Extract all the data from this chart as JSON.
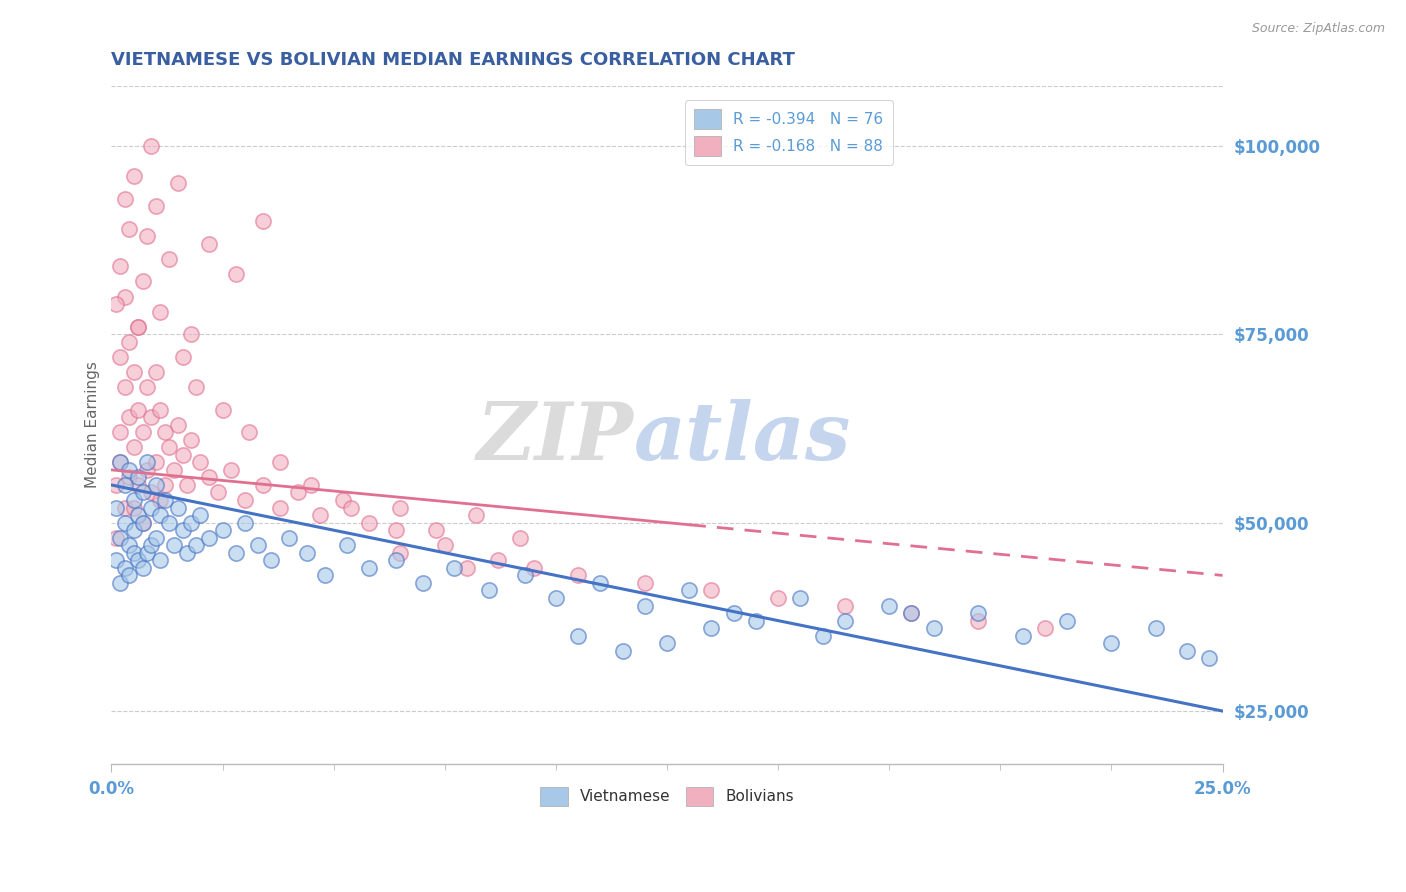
{
  "title": "VIETNAMESE VS BOLIVIAN MEDIAN EARNINGS CORRELATION CHART",
  "source": "Source: ZipAtlas.com",
  "ylabel": "Median Earnings",
  "xlim": [
    0.0,
    0.25
  ],
  "ylim": [
    18000,
    108000
  ],
  "yticks": [
    25000,
    50000,
    75000,
    100000
  ],
  "title_color": "#3a5fa0",
  "axis_color": "#5b9bd5",
  "legend_r1": "R = -0.394   N = 76",
  "legend_r2": "R = -0.168   N = 88",
  "legend_label1": "Vietnamese",
  "legend_label2": "Bolivians",
  "color_blue": "#a8c8e8",
  "color_pink": "#f0b0c0",
  "line_blue": "#4472c4",
  "line_pink": "#e07090",
  "watermark_zip": "ZIP",
  "watermark_atlas": "atlas",
  "background_color": "#ffffff",
  "viet_x": [
    0.001,
    0.001,
    0.002,
    0.002,
    0.002,
    0.003,
    0.003,
    0.003,
    0.004,
    0.004,
    0.004,
    0.005,
    0.005,
    0.005,
    0.006,
    0.006,
    0.006,
    0.007,
    0.007,
    0.007,
    0.008,
    0.008,
    0.009,
    0.009,
    0.01,
    0.01,
    0.011,
    0.011,
    0.012,
    0.013,
    0.014,
    0.015,
    0.016,
    0.017,
    0.018,
    0.019,
    0.02,
    0.022,
    0.025,
    0.028,
    0.03,
    0.033,
    0.036,
    0.04,
    0.044,
    0.048,
    0.053,
    0.058,
    0.064,
    0.07,
    0.077,
    0.085,
    0.093,
    0.1,
    0.11,
    0.12,
    0.13,
    0.14,
    0.155,
    0.165,
    0.175,
    0.185,
    0.195,
    0.205,
    0.215,
    0.225,
    0.235,
    0.242,
    0.247,
    0.18,
    0.16,
    0.145,
    0.135,
    0.125,
    0.115,
    0.105
  ],
  "viet_y": [
    52000,
    45000,
    58000,
    48000,
    42000,
    55000,
    50000,
    44000,
    57000,
    47000,
    43000,
    53000,
    49000,
    46000,
    56000,
    51000,
    45000,
    54000,
    50000,
    44000,
    58000,
    46000,
    52000,
    47000,
    55000,
    48000,
    51000,
    45000,
    53000,
    50000,
    47000,
    52000,
    49000,
    46000,
    50000,
    47000,
    51000,
    48000,
    49000,
    46000,
    50000,
    47000,
    45000,
    48000,
    46000,
    43000,
    47000,
    44000,
    45000,
    42000,
    44000,
    41000,
    43000,
    40000,
    42000,
    39000,
    41000,
    38000,
    40000,
    37000,
    39000,
    36000,
    38000,
    35000,
    37000,
    34000,
    36000,
    33000,
    32000,
    38000,
    35000,
    37000,
    36000,
    34000,
    33000,
    35000
  ],
  "boliv_x": [
    0.001,
    0.001,
    0.002,
    0.002,
    0.002,
    0.003,
    0.003,
    0.003,
    0.004,
    0.004,
    0.004,
    0.005,
    0.005,
    0.005,
    0.006,
    0.006,
    0.006,
    0.007,
    0.007,
    0.008,
    0.008,
    0.009,
    0.009,
    0.01,
    0.01,
    0.011,
    0.011,
    0.012,
    0.012,
    0.013,
    0.014,
    0.015,
    0.016,
    0.017,
    0.018,
    0.02,
    0.022,
    0.024,
    0.027,
    0.03,
    0.034,
    0.038,
    0.042,
    0.047,
    0.052,
    0.058,
    0.065,
    0.073,
    0.082,
    0.092,
    0.034,
    0.028,
    0.022,
    0.018,
    0.015,
    0.013,
    0.011,
    0.01,
    0.009,
    0.008,
    0.007,
    0.006,
    0.005,
    0.004,
    0.003,
    0.002,
    0.001,
    0.016,
    0.019,
    0.025,
    0.031,
    0.038,
    0.045,
    0.054,
    0.064,
    0.075,
    0.087,
    0.095,
    0.105,
    0.12,
    0.135,
    0.15,
    0.165,
    0.18,
    0.195,
    0.21,
    0.065,
    0.08
  ],
  "boliv_y": [
    55000,
    48000,
    62000,
    72000,
    58000,
    68000,
    80000,
    52000,
    74000,
    64000,
    56000,
    70000,
    60000,
    52000,
    65000,
    55000,
    76000,
    62000,
    50000,
    68000,
    57000,
    64000,
    54000,
    70000,
    58000,
    65000,
    53000,
    62000,
    55000,
    60000,
    57000,
    63000,
    59000,
    55000,
    61000,
    58000,
    56000,
    54000,
    57000,
    53000,
    55000,
    52000,
    54000,
    51000,
    53000,
    50000,
    52000,
    49000,
    51000,
    48000,
    90000,
    83000,
    87000,
    75000,
    95000,
    85000,
    78000,
    92000,
    100000,
    88000,
    82000,
    76000,
    96000,
    89000,
    93000,
    84000,
    79000,
    72000,
    68000,
    65000,
    62000,
    58000,
    55000,
    52000,
    49000,
    47000,
    45000,
    44000,
    43000,
    42000,
    41000,
    40000,
    39000,
    38000,
    37000,
    36000,
    46000,
    44000
  ]
}
